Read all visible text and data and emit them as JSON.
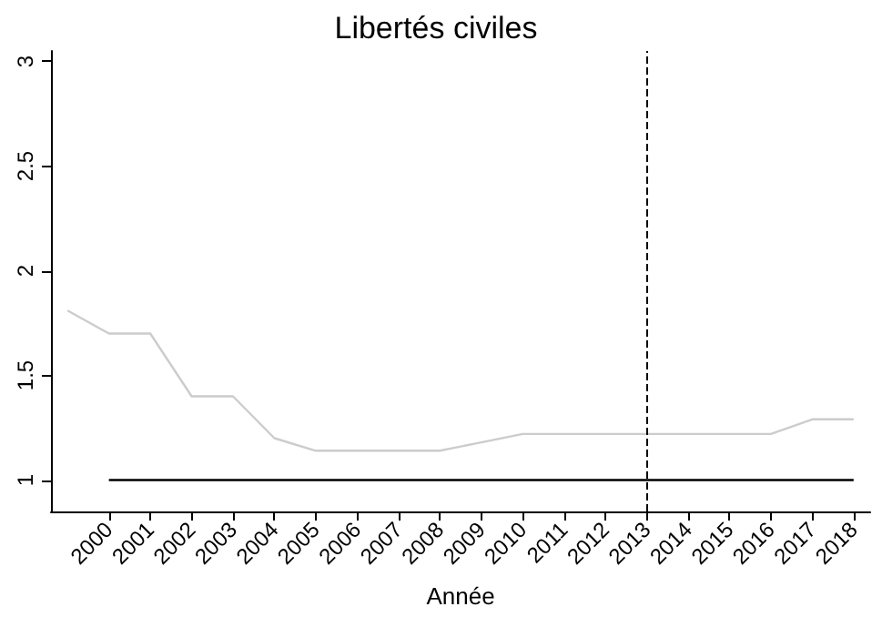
{
  "chart_data": {
    "type": "line",
    "title": "Libertés civiles",
    "xlabel": "Année",
    "series": [
      {
        "color": "#cccccc",
        "x": [
          1999,
          2000,
          2001,
          2002,
          2003,
          2004,
          2005,
          2006,
          2007,
          2008,
          2009,
          2010,
          2011,
          2012,
          2013,
          2014,
          2015,
          2016,
          2017,
          2018
        ],
        "values": [
          1.81,
          1.7,
          1.7,
          1.4,
          1.4,
          1.2,
          1.14,
          1.14,
          1.14,
          1.14,
          1.18,
          1.22,
          1.22,
          1.22,
          1.22,
          1.22,
          1.22,
          1.22,
          1.29,
          1.29
        ]
      },
      {
        "color": "#000000",
        "x": [
          2000,
          2018
        ],
        "values": [
          1,
          1
        ]
      }
    ],
    "xlim": [
      1998.6,
      2018.4
    ],
    "xticks": [
      2000,
      2001,
      2002,
      2003,
      2004,
      2005,
      2006,
      2007,
      2008,
      2009,
      2010,
      2011,
      2012,
      2013,
      2014,
      2015,
      2016,
      2017,
      2018
    ],
    "ylim": [
      0.85,
      3.05
    ],
    "yticks": [
      1,
      1.5,
      2,
      2.5,
      3
    ],
    "ref_lines": [
      {
        "axis": "x",
        "value": 2013,
        "line_style": "dashed",
        "color": "#000000"
      }
    ],
    "grid": false,
    "marker": "none",
    "line_style": "solid"
  }
}
